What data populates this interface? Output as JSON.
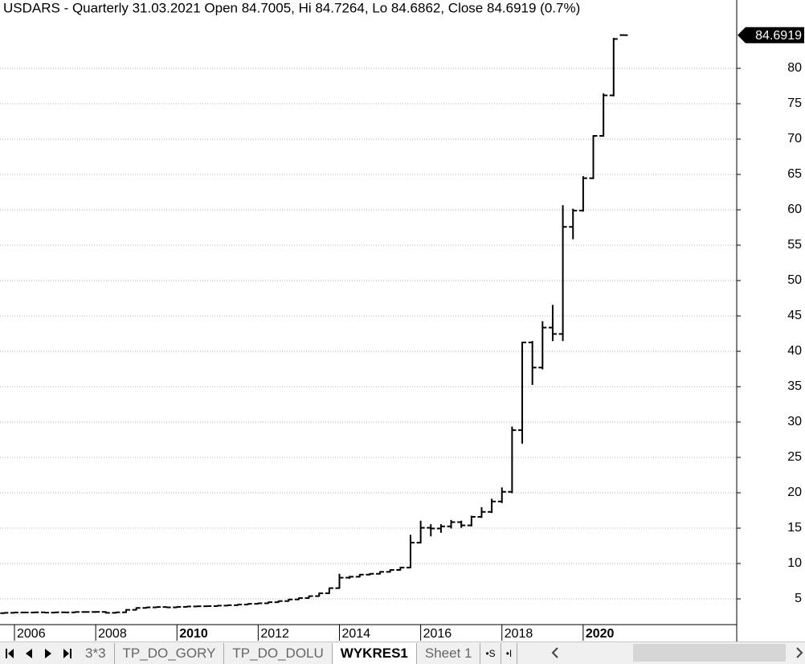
{
  "chart_data": {
    "type": "ohlc",
    "title": "USDARS - Quarterly 31.03.2021 Open 84.7005, Hi 84.7264, Lo 84.6862, Close 84.6919 (0.7%)",
    "x": [
      2005.75,
      2006,
      2006.25,
      2006.5,
      2006.75,
      2007,
      2007.25,
      2007.5,
      2007.75,
      2008,
      2008.25,
      2008.5,
      2008.75,
      2009,
      2009.25,
      2009.5,
      2009.75,
      2010,
      2010.25,
      2010.5,
      2010.75,
      2011,
      2011.25,
      2011.5,
      2011.75,
      2012,
      2012.25,
      2012.5,
      2012.75,
      2013,
      2013.25,
      2013.5,
      2013.75,
      2014,
      2014.25,
      2014.5,
      2014.75,
      2015,
      2015.25,
      2015.5,
      2015.75,
      2016,
      2016.25,
      2016.5,
      2016.75,
      2017,
      2017.25,
      2017.5,
      2017.75,
      2018,
      2018.25,
      2018.5,
      2018.75,
      2019,
      2019.25,
      2019.5,
      2019.75,
      2020,
      2020.25,
      2020.5,
      2020.75,
      2021
    ],
    "open": [
      2.98,
      3.03,
      3.08,
      3.08,
      3.1,
      3.06,
      3.1,
      3.09,
      3.15,
      3.15,
      3.16,
      3.03,
      3.1,
      3.45,
      3.72,
      3.8,
      3.85,
      3.8,
      3.87,
      3.93,
      3.96,
      3.98,
      4.05,
      4.11,
      4.2,
      4.3,
      4.38,
      4.53,
      4.69,
      4.92,
      5.12,
      5.39,
      5.79,
      6.52,
      8.0,
      8.13,
      8.43,
      8.55,
      8.82,
      9.09,
      9.42,
      12.95,
      15.05,
      14.95,
      15.25,
      15.85,
      15.39,
      16.6,
      17.3,
      18.77,
      20.14,
      28.85,
      41.25,
      37.7,
      43.35,
      42.45,
      57.59,
      59.89,
      64.47,
      70.45,
      76.18,
      84.7005
    ],
    "high": [
      3.05,
      3.1,
      3.1,
      3.12,
      3.11,
      3.12,
      3.12,
      3.17,
      3.18,
      3.2,
      3.19,
      3.12,
      3.5,
      3.75,
      3.82,
      3.87,
      3.87,
      3.89,
      3.94,
      3.97,
      4.0,
      4.07,
      4.12,
      4.22,
      4.32,
      4.4,
      4.55,
      4.71,
      4.94,
      5.14,
      5.41,
      5.82,
      6.55,
      8.5,
      8.2,
      8.45,
      8.58,
      8.85,
      9.12,
      9.45,
      14.0,
      16.0,
      15.5,
      15.5,
      16.1,
      16.0,
      16.7,
      17.9,
      19.1,
      20.7,
      29.3,
      41.3,
      41.4,
      44.2,
      46.5,
      60.6,
      60.1,
      64.7,
      70.5,
      76.4,
      84.25,
      84.7264
    ],
    "low": [
      2.96,
      3.01,
      3.05,
      3.06,
      3.04,
      3.04,
      3.07,
      3.08,
      3.13,
      3.1,
      3.0,
      3.0,
      3.08,
      3.44,
      3.7,
      3.78,
      3.78,
      3.78,
      3.85,
      3.91,
      3.95,
      3.97,
      4.03,
      4.1,
      4.18,
      4.29,
      4.36,
      4.51,
      4.67,
      4.9,
      5.1,
      5.37,
      5.76,
      6.5,
      7.9,
      8.1,
      8.4,
      8.52,
      8.8,
      9.07,
      9.4,
      12.9,
      13.9,
      14.4,
      15.0,
      15.1,
      15.3,
      16.5,
      17.2,
      18.6,
      20.0,
      27.0,
      35.3,
      37.5,
      41.5,
      41.5,
      55.9,
      59.8,
      64.4,
      70.4,
      76.1,
      84.6862
    ],
    "close": [
      3.03,
      3.08,
      3.08,
      3.1,
      3.06,
      3.1,
      3.09,
      3.15,
      3.15,
      3.16,
      3.03,
      3.1,
      3.45,
      3.72,
      3.8,
      3.85,
      3.8,
      3.87,
      3.93,
      3.96,
      3.98,
      4.05,
      4.11,
      4.2,
      4.3,
      4.38,
      4.53,
      4.69,
      4.92,
      5.12,
      5.39,
      5.79,
      6.52,
      8.0,
      8.13,
      8.43,
      8.55,
      8.82,
      9.09,
      9.42,
      12.95,
      15.05,
      14.95,
      15.25,
      15.85,
      15.39,
      16.6,
      17.3,
      18.77,
      20.14,
      28.85,
      41.25,
      37.7,
      43.35,
      42.45,
      57.59,
      59.89,
      64.47,
      70.45,
      76.18,
      84.15,
      84.6919
    ],
    "color": "#000000",
    "xlim": [
      2005.644,
      2023.78
    ],
    "xticks": [
      2006,
      2008,
      2010,
      2012,
      2014,
      2016,
      2018,
      2020
    ],
    "bold_xticks": [
      2010,
      2020
    ],
    "ylim": [
      1.364,
      89.66
    ],
    "yticks": [
      5,
      10,
      15,
      20,
      25,
      30,
      35,
      40,
      45,
      50,
      55,
      60,
      65,
      70,
      75,
      80
    ],
    "grid": true
  },
  "tabs": [
    "3*3",
    "TP_DO_GORY",
    "TP_DO_DOLU",
    "WYKRES1",
    "Sheet 1"
  ],
  "active_tab": 3,
  "tab_buttons": [
    "•S",
    "•I"
  ]
}
